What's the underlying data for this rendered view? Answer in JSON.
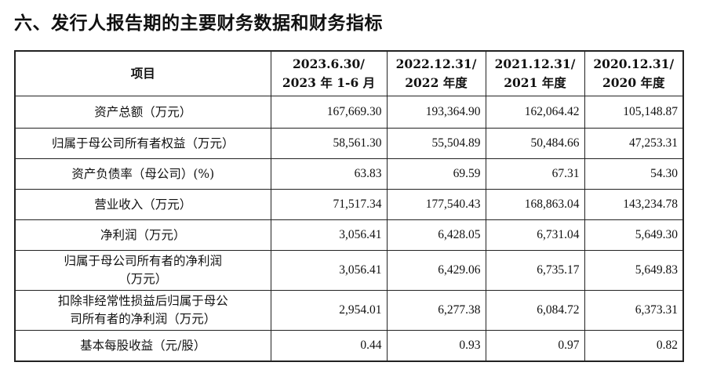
{
  "title": "六、发行人报告期的主要财务数据和财务指标",
  "table": {
    "headers": [
      {
        "line1": "项目",
        "line2": ""
      },
      {
        "line1": "2023.6.30/",
        "line2": "2023 年 1-6 月"
      },
      {
        "line1": "2022.12.31/",
        "line2": "2022 年度"
      },
      {
        "line1": "2021.12.31/",
        "line2": "2021 年度"
      },
      {
        "line1": "2020.12.31/",
        "line2": "2020 年度"
      }
    ],
    "rows": [
      {
        "label1": "资产总额（万元）",
        "label2": "",
        "values": [
          "167,669.30",
          "193,364.90",
          "162,064.42",
          "105,148.87"
        ]
      },
      {
        "label1": "归属于母公司所有者权益（万元）",
        "label2": "",
        "values": [
          "58,561.30",
          "55,504.89",
          "50,484.66",
          "47,253.31"
        ]
      },
      {
        "label1": "资产负债率（母公司）(%)",
        "label2": "",
        "values": [
          "63.83",
          "69.59",
          "67.31",
          "54.30"
        ]
      },
      {
        "label1": "营业收入（万元）",
        "label2": "",
        "values": [
          "71,517.34",
          "177,540.43",
          "168,863.04",
          "143,234.78"
        ]
      },
      {
        "label1": "净利润（万元）",
        "label2": "",
        "values": [
          "3,056.41",
          "6,428.05",
          "6,731.04",
          "5,649.30"
        ]
      },
      {
        "label1": "归属于母公司所有者的净利润",
        "label2": "（万元）",
        "values": [
          "3,056.41",
          "6,429.06",
          "6,735.17",
          "5,649.83"
        ]
      },
      {
        "label1": "扣除非经常性损益后归属于母公",
        "label2": "司所有者的净利润（万元）",
        "values": [
          "2,954.01",
          "6,277.38",
          "6,084.72",
          "6,373.31"
        ]
      },
      {
        "label1": "基本每股收益（元/股）",
        "label2": "",
        "values": [
          "0.44",
          "0.93",
          "0.97",
          "0.82"
        ]
      }
    ]
  }
}
